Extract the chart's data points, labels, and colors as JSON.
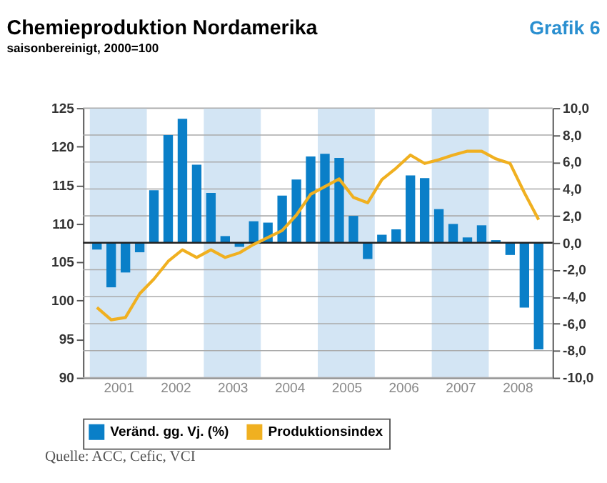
{
  "chart_data": {
    "type": "bar",
    "title": "Chemieproduktion Nordamerika",
    "subtitle": "saisonbereinigt, 2000=100",
    "annotations": [
      "Grafik 6",
      "Quelle: ACC, Cefic, VCI"
    ],
    "x": [
      2001.125,
      2001.375,
      2001.625,
      2001.875,
      2002.125,
      2002.375,
      2002.625,
      2002.875,
      2003.125,
      2003.375,
      2003.625,
      2003.875,
      2004.125,
      2004.375,
      2004.625,
      2004.875,
      2005.125,
      2005.375,
      2005.625,
      2005.875,
      2006.125,
      2006.375,
      2006.625,
      2006.875,
      2007.125,
      2007.375,
      2007.625,
      2007.875,
      2008.125,
      2008.375,
      2008.625,
      2008.875
    ],
    "series": [
      {
        "name": "Veränd. gg. Vj. (%)",
        "axis": "y2",
        "color": "#0a7fc8",
        "values": [
          -0.5,
          -3.3,
          -2.2,
          -0.7,
          3.9,
          8.0,
          9.2,
          5.8,
          3.7,
          0.5,
          -0.3,
          1.6,
          1.5,
          3.5,
          4.7,
          6.4,
          6.6,
          6.3,
          2.0,
          -1.2,
          0.6,
          1.0,
          5.0,
          4.8,
          2.5,
          1.4,
          0.4,
          1.3,
          0.2,
          -0.9,
          -4.8,
          -7.9
        ]
      },
      {
        "name": "Produktionsindex",
        "type": "line",
        "axis": "y",
        "color": "#f0b020",
        "values": [
          99.1,
          97.5,
          97.8,
          100.9,
          102.8,
          105.1,
          106.6,
          105.6,
          106.6,
          105.6,
          106.2,
          107.3,
          108.2,
          109.1,
          111.1,
          113.8,
          114.8,
          115.8,
          113.4,
          112.7,
          115.7,
          117.2,
          118.9,
          117.8,
          118.3,
          118.9,
          119.4,
          119.4,
          118.4,
          117.8,
          114.0,
          110.5
        ]
      }
    ],
    "xlim": [
      2001,
      2009
    ],
    "xticks": [
      {
        "value": 2001.5,
        "label": "2001"
      },
      {
        "value": 2002.5,
        "label": "2002"
      },
      {
        "value": 2003.5,
        "label": "2003"
      },
      {
        "value": 2004.5,
        "label": "2004"
      },
      {
        "value": 2005.5,
        "label": "2005"
      },
      {
        "value": 2006.5,
        "label": "2006"
      },
      {
        "value": 2007.5,
        "label": "2007"
      },
      {
        "value": 2008.5,
        "label": "2008"
      }
    ],
    "ylim": [
      90,
      125
    ],
    "yticks": [
      90,
      95,
      100,
      105,
      110,
      115,
      120,
      125
    ],
    "y2lim": [
      -10,
      10
    ],
    "y2ticks": [
      {
        "value": -10,
        "label": "-10,0"
      },
      {
        "value": -8,
        "label": "-8,0"
      },
      {
        "value": -6,
        "label": "-6,0"
      },
      {
        "value": -4,
        "label": "-4,0"
      },
      {
        "value": -2,
        "label": "-2,0"
      },
      {
        "value": 0,
        "label": "0,0"
      },
      {
        "value": 2,
        "label": "2,0"
      },
      {
        "value": 4,
        "label": "4,0"
      },
      {
        "value": 6,
        "label": "6,0"
      },
      {
        "value": 8,
        "label": "8,0"
      },
      {
        "value": 10,
        "label": "10,0"
      }
    ],
    "bands": [
      {
        "axis": "x",
        "from": 2001,
        "to": 2002,
        "color": "#d3e5f4"
      },
      {
        "axis": "x",
        "from": 2003,
        "to": 2004,
        "color": "#d3e5f4"
      },
      {
        "axis": "x",
        "from": 2005,
        "to": 2006,
        "color": "#d3e5f4"
      },
      {
        "axis": "x",
        "from": 2007,
        "to": 2008,
        "color": "#d3e5f4"
      }
    ],
    "ref_lines": [
      {
        "axis": "y2",
        "value": 0,
        "color": "#222222"
      }
    ],
    "grid": "y2",
    "legend": "bottom",
    "marker": "none",
    "line_style": "solid"
  }
}
